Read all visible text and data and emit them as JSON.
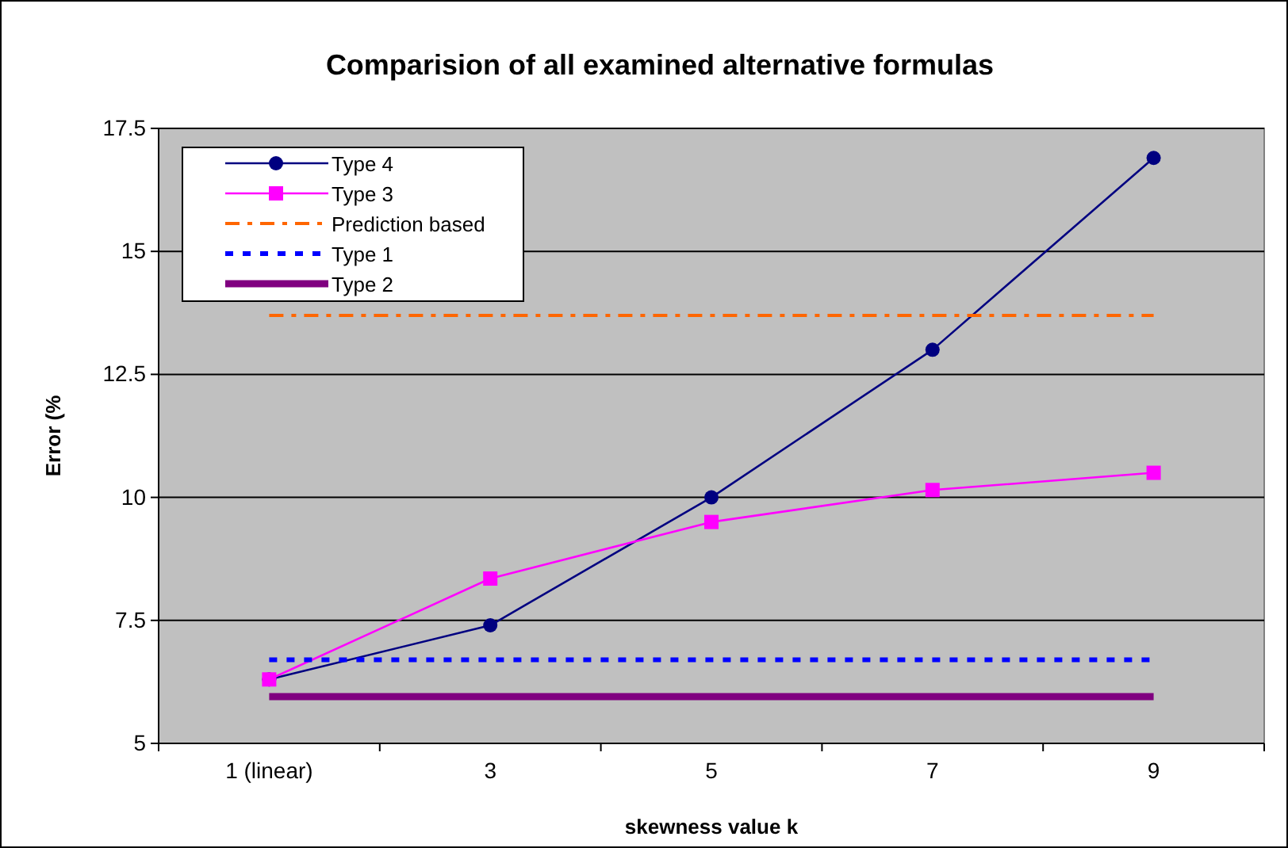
{
  "chart_data": {
    "type": "line",
    "title": "Comparision of all examined alternative formulas",
    "xlabel": "skewness value k",
    "ylabel": "Error (%",
    "categories": [
      "1 (linear)",
      "3",
      "5",
      "7",
      "9"
    ],
    "series": [
      {
        "name": "Type 4",
        "color": "#000080",
        "values": [
          6.3,
          7.4,
          10,
          13,
          16.9
        ],
        "marker": "circle",
        "line_style": "solid"
      },
      {
        "name": "Type 3",
        "color": "#ff00ff",
        "values": [
          6.3,
          8.35,
          9.5,
          10.15,
          10.5
        ],
        "marker": "square",
        "line_style": "solid"
      },
      {
        "name": "Prediction based",
        "color": "#ff6600",
        "values": [
          13.7,
          13.7,
          13.7,
          13.7,
          13.7
        ],
        "marker": "none",
        "line_style": "dashdot"
      },
      {
        "name": "Type 1",
        "color": "#0000ff",
        "values": [
          6.7,
          6.7,
          6.7,
          6.7,
          6.7
        ],
        "marker": "none",
        "line_style": "dashed"
      },
      {
        "name": "Type 2",
        "color": "#800080",
        "values": [
          5.95,
          5.95,
          5.95,
          5.95,
          5.95
        ],
        "marker": "none",
        "line_style": "solid"
      }
    ],
    "ylim": [
      5,
      17.5
    ],
    "yticks": [
      5,
      7.5,
      10,
      12.5,
      15,
      17.5
    ],
    "grid": "y",
    "legend": "top left"
  }
}
